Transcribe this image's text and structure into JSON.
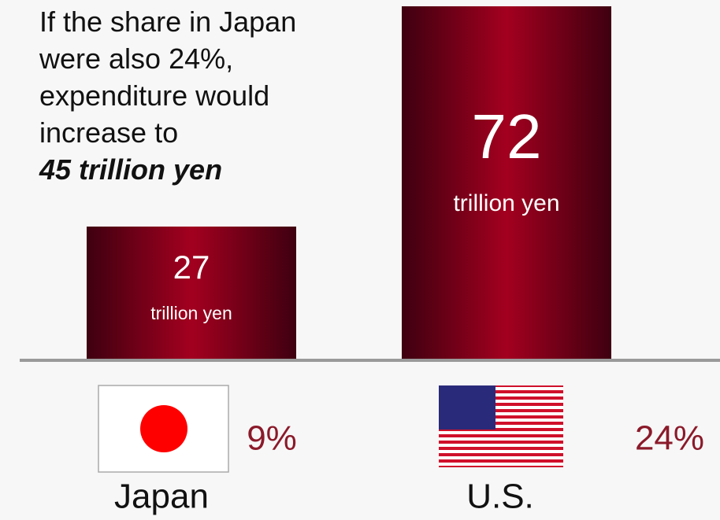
{
  "chart_data": {
    "type": "bar",
    "annotation": "If the share in Japan were also 24%, expenditure would increase to",
    "annotation_emphasis": "45 trillion yen",
    "categories": [
      "Japan",
      "U.S."
    ],
    "values": [
      27,
      72
    ],
    "unit": "trillion yen",
    "shares": [
      {
        "value": 9,
        "label": "9%"
      },
      {
        "value": 24,
        "label": "24%"
      }
    ],
    "color": "#a3001f"
  }
}
